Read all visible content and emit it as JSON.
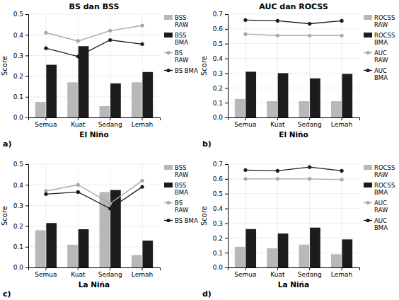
{
  "chart_data": [
    {
      "type": "bar",
      "title": "BS dan BSS",
      "xlabel": "El Niño",
      "ylabel": "Score",
      "categories": [
        "Semua",
        "Kuat",
        "Sedang",
        "Lemah"
      ],
      "series": [
        {
          "name": "BSS\nRAW",
          "type": "bar",
          "color": "#b8b8b8",
          "values": [
            0.075,
            0.17,
            0.055,
            0.17
          ]
        },
        {
          "name": "BSS\nBMA",
          "type": "bar",
          "color": "#1c1c1c",
          "values": [
            0.255,
            0.345,
            0.165,
            0.22
          ]
        },
        {
          "name": "BS\nRAW",
          "type": "line",
          "marker": "circle",
          "color": "#a8a8a8",
          "values": [
            0.41,
            0.37,
            0.42,
            0.445
          ]
        },
        {
          "name": "BS BMA",
          "type": "line",
          "marker": "circle",
          "color": "#1c1c1c",
          "values": [
            0.335,
            0.295,
            0.375,
            0.355
          ]
        }
      ],
      "ylim": [
        0,
        0.5
      ],
      "yticks": [
        {
          "value": 0,
          "label": "0.0"
        },
        0.1,
        0.2,
        0.3,
        0.4,
        0.5
      ],
      "grid": true,
      "legend": "upper right",
      "annotations": [
        "a)"
      ]
    },
    {
      "type": "bar",
      "title": "AUC dan ROCSS",
      "xlabel": "El Niño",
      "ylabel": "Score",
      "categories": [
        "Semua",
        "Kuat",
        "Sedang",
        "Lemah"
      ],
      "series": [
        {
          "name": "ROCSS\nRAW",
          "type": "bar",
          "color": "#b8b8b8",
          "values": [
            0.125,
            0.11,
            0.11,
            0.11
          ]
        },
        {
          "name": "ROCSS\nBMA",
          "type": "bar",
          "color": "#1c1c1c",
          "values": [
            0.31,
            0.3,
            0.265,
            0.295
          ]
        },
        {
          "name": "AUC\nRAW",
          "type": "line",
          "marker": "circle",
          "color": "#a8a8a8",
          "values": [
            0.565,
            0.555,
            0.555,
            0.555
          ]
        },
        {
          "name": "AUC\nBMA",
          "type": "line",
          "marker": "circle",
          "color": "#1c1c1c",
          "values": [
            0.66,
            0.655,
            0.635,
            0.655
          ]
        }
      ],
      "ylim": [
        0,
        0.7
      ],
      "yticks": [
        {
          "value": 0,
          "label": "0.0"
        },
        0.1,
        0.2,
        0.3,
        0.4,
        0.5,
        0.6,
        0.7
      ],
      "grid": true,
      "legend": "upper right",
      "annotations": [
        "b)"
      ]
    },
    {
      "type": "bar",
      "xlabel": "La Niña",
      "ylabel": "Score",
      "categories": [
        "Semua",
        "Kuat",
        "Sedang",
        "Lemah"
      ],
      "series": [
        {
          "name": "BSS\nRAW",
          "type": "bar",
          "color": "#b8b8b8",
          "values": [
            0.18,
            0.11,
            0.365,
            0.06
          ]
        },
        {
          "name": "BSS\nBMA",
          "type": "bar",
          "color": "#1c1c1c",
          "values": [
            0.215,
            0.185,
            0.375,
            0.13
          ]
        },
        {
          "name": "BS\nRAW",
          "type": "line",
          "marker": "circle",
          "color": "#a8a8a8",
          "values": [
            0.37,
            0.4,
            0.31,
            0.42
          ]
        },
        {
          "name": "BS BMA",
          "type": "line",
          "marker": "circle",
          "color": "#1c1c1c",
          "values": [
            0.355,
            0.365,
            0.285,
            0.39
          ]
        }
      ],
      "ylim": [
        0,
        0.5
      ],
      "yticks": [
        {
          "value": 0,
          "label": "0.0"
        },
        0.1,
        0.2,
        0.3,
        0.4,
        0.5
      ],
      "grid": true,
      "legend": "upper right",
      "annotations": [
        "c)"
      ]
    },
    {
      "type": "bar",
      "xlabel": "La Niña",
      "ylabel": "Score",
      "categories": [
        "Semua",
        "Kuat",
        "Sedang",
        "Lemah"
      ],
      "series": [
        {
          "name": "ROCSS\nRAW",
          "type": "bar",
          "color": "#b8b8b8",
          "values": [
            0.14,
            0.13,
            0.155,
            0.09
          ]
        },
        {
          "name": "ROCSS\nBMA",
          "type": "bar",
          "color": "#1c1c1c",
          "values": [
            0.26,
            0.23,
            0.27,
            0.19
          ]
        },
        {
          "name": "AUC\nRAW",
          "type": "line",
          "marker": "circle",
          "color": "#a8a8a8",
          "values": [
            0.6,
            0.6,
            0.6,
            0.595
          ]
        },
        {
          "name": "AUC\nBMA",
          "type": "line",
          "marker": "circle",
          "color": "#1c1c1c",
          "values": [
            0.66,
            0.655,
            0.68,
            0.655
          ]
        }
      ],
      "ylim": [
        0,
        0.7
      ],
      "yticks": [
        {
          "value": 0,
          "label": "0.0"
        },
        0.1,
        0.2,
        0.3,
        0.4,
        0.5,
        0.6,
        0.7
      ],
      "grid": true,
      "legend": "upper right",
      "annotations": [
        "d)"
      ]
    }
  ]
}
